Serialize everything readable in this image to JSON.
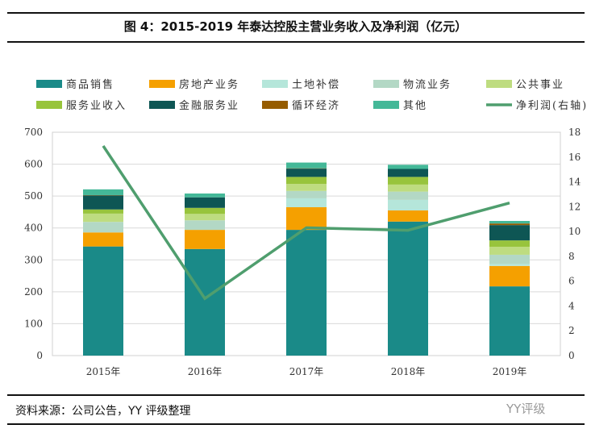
{
  "chart_data": {
    "type": "bar",
    "stacked": true,
    "title": "图 4：2015-2019 年泰达控股主营业务收入及净利润（亿元）",
    "categories": [
      "2015年",
      "2016年",
      "2017年",
      "2018年",
      "2019年"
    ],
    "ylim": [
      0,
      700
    ],
    "yticks": [
      0,
      100,
      200,
      300,
      400,
      500,
      600,
      700
    ],
    "y2lim": [
      0,
      18
    ],
    "y2ticks": [
      0,
      2,
      4,
      6,
      8,
      10,
      12,
      14,
      16,
      18
    ],
    "grid": true,
    "legend_placement": "top",
    "series": [
      {
        "name": "商品销售",
        "color": "#1a8a88",
        "values": [
          342,
          334,
          394,
          420,
          217
        ]
      },
      {
        "name": "房地产业务",
        "color": "#f5a000",
        "values": [
          44,
          60,
          71,
          35,
          64
        ]
      },
      {
        "name": "土地补偿",
        "color": "#b5e6da",
        "values": [
          0,
          0,
          28,
          33,
          6
        ]
      },
      {
        "name": "物流业务",
        "color": "#b3d8c5",
        "values": [
          33,
          30,
          23,
          26,
          29
        ]
      },
      {
        "name": "公共事业",
        "color": "#bedc80",
        "values": [
          26,
          20,
          22,
          22,
          25
        ]
      },
      {
        "name": "服务业收入",
        "color": "#98c43c",
        "values": [
          13,
          19,
          22,
          24,
          20
        ]
      },
      {
        "name": "金融服务业",
        "color": "#0e5654",
        "values": [
          44,
          33,
          26,
          25,
          48
        ]
      },
      {
        "name": "循环经济",
        "color": "#965c00",
        "values": [
          1,
          0,
          1,
          0,
          5
        ]
      },
      {
        "name": "其他",
        "color": "#44b898",
        "values": [
          18,
          12,
          18,
          13,
          8
        ]
      }
    ],
    "line": {
      "name": "净利润(右轴)",
      "color": "#4f9e6e",
      "axis": "right",
      "values": [
        16.9,
        4.6,
        10.3,
        10.1,
        12.3
      ]
    }
  },
  "source": "资料来源：公司公告，YY 评级整理",
  "watermark": "YY评级"
}
